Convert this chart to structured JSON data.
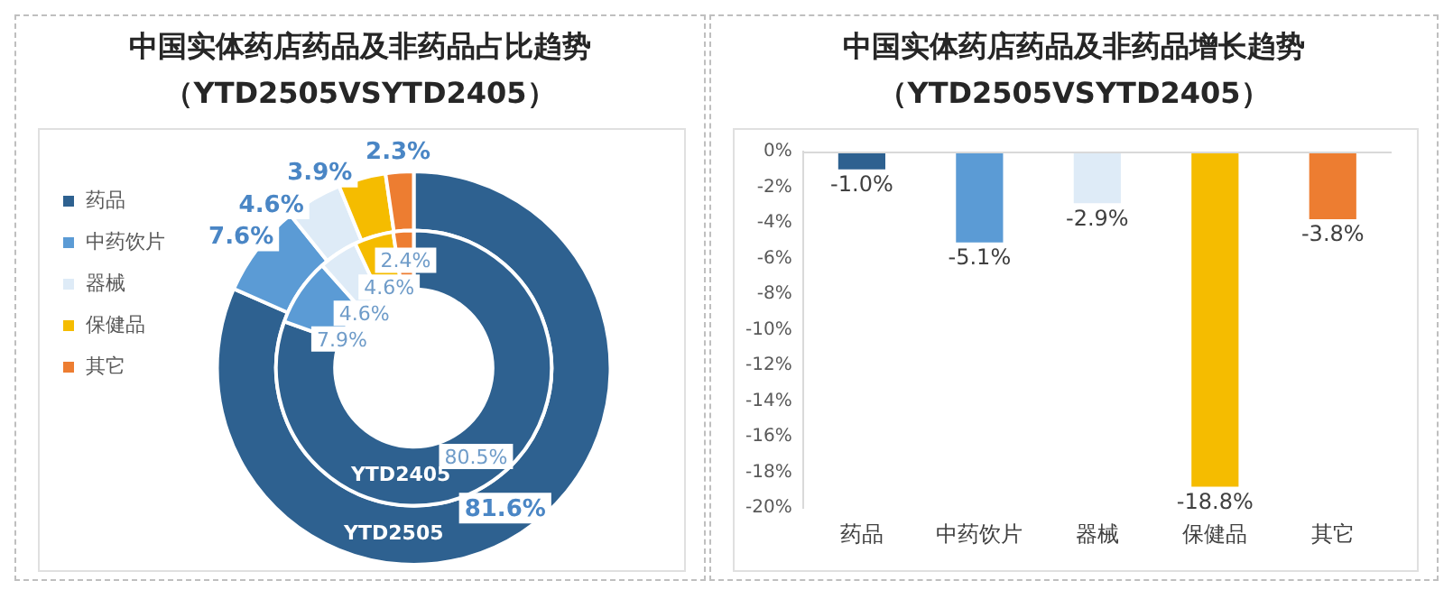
{
  "chart_data": [
    {
      "type": "donut",
      "title": "中国实体药店药品及非药品占比趋势",
      "subtitle": "（YTD2505VSYTD2405）",
      "categories": [
        "药品",
        "中药饮片",
        "器械",
        "保健品",
        "其它"
      ],
      "colors": [
        "#2e6190",
        "#5b9bd5",
        "#deebf7",
        "#f5bc00",
        "#ed7d31"
      ],
      "legend": "top left",
      "series": [
        {
          "name": "YTD2405",
          "values": [
            80.5,
            7.9,
            4.6,
            4.6,
            2.4
          ],
          "value_labels": [
            "80.5%",
            "7.9%",
            "4.6%",
            "4.6%",
            "2.4%"
          ]
        },
        {
          "name": "YTD2505",
          "values": [
            81.6,
            7.6,
            4.6,
            3.9,
            2.3
          ],
          "value_labels": [
            "81.6%",
            "7.6%",
            "4.6%",
            "3.9%",
            "2.3%"
          ]
        }
      ]
    },
    {
      "type": "bar",
      "title": "中国实体药店药品及非药品增长趋势",
      "subtitle": "（YTD2505VSYTD2405）",
      "categories": [
        "药品",
        "中药饮片",
        "器械",
        "保健品",
        "其它"
      ],
      "values": [
        -1.0,
        -5.1,
        -2.9,
        -18.8,
        -3.8
      ],
      "colors": [
        "#2e6190",
        "#5b9bd5",
        "#deebf7",
        "#f5bc00",
        "#ed7d31"
      ],
      "value_labels": [
        "-1.0%",
        "-5.1%",
        "-2.9%",
        "-18.8%",
        "-3.8%"
      ],
      "ylim": [
        -20,
        0
      ],
      "yticks": [
        {
          "value": 0,
          "label": "0%"
        },
        {
          "value": -2,
          "label": "-2%"
        },
        {
          "value": -4,
          "label": "-4%"
        },
        {
          "value": -6,
          "label": "-6%"
        },
        {
          "value": -8,
          "label": "-8%"
        },
        {
          "value": -10,
          "label": "-10%"
        },
        {
          "value": -12,
          "label": "-12%"
        },
        {
          "value": -14,
          "label": "-14%"
        },
        {
          "value": -16,
          "label": "-16%"
        },
        {
          "value": -18,
          "label": "-18%"
        },
        {
          "value": -20,
          "label": "-20%"
        }
      ],
      "grid": false,
      "legend": false
    }
  ]
}
